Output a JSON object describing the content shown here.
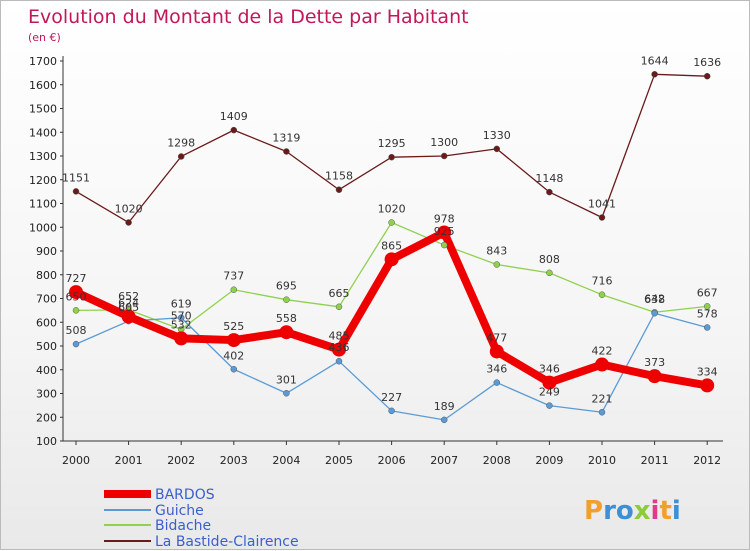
{
  "header": {
    "title": "Evolution du Montant de la Dette par Habitant",
    "subtitle": "(en €)"
  },
  "logo": {
    "text": "Proxiti"
  },
  "chart_data": {
    "type": "line",
    "title": "Evolution du Montant de la Dette par Habitant",
    "subtitle": "(en €)",
    "xlabel": "",
    "ylabel": "",
    "categories": [
      "2000",
      "2001",
      "2002",
      "2003",
      "2004",
      "2005",
      "2006",
      "2007",
      "2008",
      "2009",
      "2010",
      "2011",
      "2012"
    ],
    "ylim": [
      100,
      1700
    ],
    "yticks": [
      100,
      200,
      300,
      400,
      500,
      600,
      700,
      800,
      900,
      1000,
      1100,
      1200,
      1300,
      1400,
      1500,
      1600,
      1700
    ],
    "grid": false,
    "legend_position": "bottom-left",
    "series": [
      {
        "name": "BARDOS",
        "color": "#ee0000",
        "values": [
          727,
          624,
          532,
          525,
          558,
          485,
          865,
          978,
          477,
          346,
          422,
          373,
          334
        ],
        "labels": [
          "727",
          "624",
          "532",
          "525",
          "558",
          "485",
          "865",
          "978",
          "477",
          "346",
          "422",
          "373",
          "334"
        ]
      },
      {
        "name": "Guiche",
        "color": "#5b9bd5",
        "values": [
          508,
          605,
          619,
          402,
          301,
          436,
          227,
          189,
          346,
          249,
          221,
          638,
          578
        ],
        "labels": [
          "508",
          "605",
          "619",
          "402",
          "301",
          "436",
          "227",
          "189",
          "346",
          "249",
          "221",
          "638",
          "578"
        ]
      },
      {
        "name": "Bidache",
        "color": "#8fd14f",
        "values": [
          650,
          652,
          570,
          737,
          695,
          665,
          1020,
          925,
          843,
          808,
          716,
          642,
          667
        ],
        "labels": [
          "650",
          "652",
          "570",
          "737",
          "695",
          "665",
          "1020",
          "925",
          "843",
          "808",
          "716",
          "642",
          "667"
        ]
      },
      {
        "name": "La Bastide-Clairence",
        "color": "#6b1a1a",
        "values": [
          1151,
          1020,
          1298,
          1409,
          1319,
          1158,
          1295,
          1300,
          1330,
          1148,
          1041,
          1644,
          1636
        ],
        "labels": [
          "1151",
          "1020",
          "1298",
          "1409",
          "1319",
          "1158",
          "1295",
          "1300",
          "1330",
          "1148",
          "1041",
          "1644",
          "1636"
        ]
      }
    ]
  }
}
